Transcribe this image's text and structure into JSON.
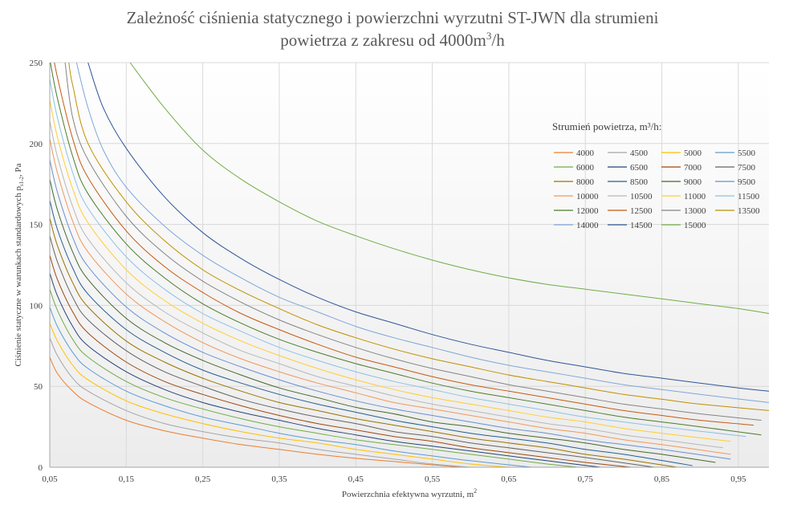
{
  "chart_data": {
    "type": "line",
    "title_line1": "Zależność ciśnienia statycznego i powierzchni wyrzutni ST-JWN dla strumieni",
    "title_line2_main": "powietrza z zakresu od 4000m",
    "title_line2_sup": "3",
    "title_line2_tail": "/h",
    "xlabel_main": "Powierzchnia efektywna wyrzutni, m",
    "xlabel_sup": "2",
    "ylabel_main": "Ciśnienie statyczne w warunkach standardowych p",
    "ylabel_sub": "s1-2",
    "ylabel_tail": ", Pa",
    "xlim": [
      0.05,
      0.99
    ],
    "ylim": [
      0,
      250
    ],
    "x_ticks": [
      "0,05",
      "0,15",
      "0,25",
      "0,35",
      "0,45",
      "0,55",
      "0,65",
      "0,75",
      "0,85",
      "0,95"
    ],
    "y_ticks": [
      "0",
      "50",
      "100",
      "150",
      "200",
      "250"
    ],
    "grid": true,
    "legend_title": "Strumień powietrza, m³/h:",
    "legend_position": "right",
    "model_note": "",
    "series": [
      {
        "name": "4000",
        "color": "#ed7d31",
        "x_end": 0.59,
        "x": [
          0.05,
          0.06,
          0.08,
          0.1,
          0.15,
          0.2,
          0.25,
          0.3,
          0.35,
          0.4,
          0.45,
          0.5,
          0.55,
          0.59
        ],
        "y": [
          68,
          58,
          47,
          40,
          29,
          22.5,
          18,
          14,
          11,
          8,
          5.5,
          3.5,
          1.5,
          0
        ]
      },
      {
        "name": "4500",
        "color": "#a5a5a5",
        "x_end": 0.6,
        "x": [
          0.05,
          0.06,
          0.08,
          0.1,
          0.15,
          0.2,
          0.25,
          0.3,
          0.35,
          0.4,
          0.45,
          0.5,
          0.55,
          0.6
        ],
        "y": [
          80,
          69,
          55,
          47,
          35,
          27,
          22,
          18,
          15,
          11,
          8,
          5,
          2,
          0
        ]
      },
      {
        "name": "5000",
        "color": "#ffc000",
        "x_end": 0.65,
        "x": [
          0.05,
          0.06,
          0.08,
          0.1,
          0.15,
          0.2,
          0.25,
          0.3,
          0.35,
          0.4,
          0.45,
          0.5,
          0.55,
          0.6,
          0.65
        ],
        "y": [
          89,
          78,
          63,
          54,
          41,
          33,
          27,
          22,
          18,
          15,
          11,
          8,
          5,
          2,
          0
        ]
      },
      {
        "name": "5500",
        "color": "#5b9bd5",
        "x_end": 0.68,
        "x": [
          0.05,
          0.06,
          0.08,
          0.1,
          0.15,
          0.2,
          0.25,
          0.3,
          0.35,
          0.4,
          0.45,
          0.5,
          0.55,
          0.6,
          0.68
        ],
        "y": [
          99,
          87,
          71,
          61,
          47,
          38,
          31,
          26,
          21,
          17,
          14,
          10,
          7,
          4,
          0
        ]
      },
      {
        "name": "6000",
        "color": "#70ad47",
        "x_end": 0.74,
        "x": [
          0.05,
          0.06,
          0.08,
          0.1,
          0.15,
          0.2,
          0.25,
          0.3,
          0.35,
          0.4,
          0.45,
          0.5,
          0.55,
          0.6,
          0.65,
          0.7,
          0.74
        ],
        "y": [
          110,
          97,
          79,
          68,
          53,
          43,
          36,
          30,
          25,
          21,
          17,
          14,
          11,
          8,
          5,
          2,
          0
        ]
      },
      {
        "name": "6500",
        "color": "#264478",
        "x_end": 0.77,
        "x": [
          0.05,
          0.06,
          0.08,
          0.1,
          0.15,
          0.2,
          0.25,
          0.3,
          0.35,
          0.4,
          0.45,
          0.5,
          0.55,
          0.6,
          0.65,
          0.7,
          0.77
        ],
        "y": [
          120,
          106,
          87,
          75,
          59,
          48,
          40,
          34,
          29,
          24,
          20,
          16,
          13,
          10,
          7,
          4,
          0
        ]
      },
      {
        "name": "7000",
        "color": "#9e480e",
        "x_end": 0.81,
        "x": [
          0.05,
          0.06,
          0.08,
          0.1,
          0.15,
          0.2,
          0.25,
          0.3,
          0.35,
          0.4,
          0.45,
          0.5,
          0.55,
          0.6,
          0.65,
          0.7,
          0.75,
          0.81
        ],
        "y": [
          131,
          116,
          96,
          83,
          65,
          53,
          45,
          38,
          32,
          27,
          23,
          19,
          16,
          12,
          9,
          6,
          3,
          0
        ]
      },
      {
        "name": "7500",
        "color": "#636363",
        "x_end": 0.84,
        "x": [
          0.05,
          0.06,
          0.08,
          0.1,
          0.15,
          0.2,
          0.25,
          0.3,
          0.35,
          0.4,
          0.45,
          0.5,
          0.55,
          0.6,
          0.65,
          0.7,
          0.75,
          0.84
        ],
        "y": [
          143,
          127,
          105,
          91,
          72,
          59,
          50,
          42,
          36,
          31,
          27,
          22,
          19,
          15,
          12,
          9,
          6,
          0
        ]
      },
      {
        "name": "8000",
        "color": "#997300",
        "x_end": 0.87,
        "x": [
          0.05,
          0.06,
          0.08,
          0.1,
          0.15,
          0.2,
          0.25,
          0.3,
          0.35,
          0.4,
          0.45,
          0.5,
          0.55,
          0.6,
          0.65,
          0.7,
          0.75,
          0.8,
          0.87
        ],
        "y": [
          154,
          137,
          114,
          99,
          78,
          65,
          55,
          47,
          40,
          35,
          30,
          26,
          22,
          18,
          15,
          12,
          8,
          5,
          0
        ]
      },
      {
        "name": "8500",
        "color": "#255e91",
        "x_end": 0.89,
        "x": [
          0.05,
          0.06,
          0.08,
          0.1,
          0.15,
          0.2,
          0.25,
          0.3,
          0.35,
          0.4,
          0.45,
          0.5,
          0.55,
          0.6,
          0.65,
          0.7,
          0.75,
          0.8,
          0.89
        ],
        "y": [
          165,
          147,
          123,
          107,
          85,
          71,
          60,
          52,
          45,
          39,
          34,
          29,
          25,
          21,
          18,
          15,
          11,
          8,
          1
        ]
      },
      {
        "name": "9000",
        "color": "#43682b",
        "x_end": 0.92,
        "x": [
          0.05,
          0.06,
          0.08,
          0.1,
          0.15,
          0.2,
          0.25,
          0.3,
          0.35,
          0.4,
          0.45,
          0.5,
          0.55,
          0.6,
          0.65,
          0.7,
          0.75,
          0.8,
          0.85,
          0.92
        ],
        "y": [
          178,
          159,
          133,
          116,
          92,
          77,
          66,
          57,
          49,
          43,
          37,
          33,
          28,
          25,
          21,
          18,
          15,
          11,
          8,
          3
        ]
      },
      {
        "name": "9500",
        "color": "#698ed0",
        "x_end": 0.94,
        "x": [
          0.05,
          0.06,
          0.08,
          0.1,
          0.15,
          0.2,
          0.25,
          0.3,
          0.35,
          0.4,
          0.45,
          0.5,
          0.55,
          0.6,
          0.65,
          0.7,
          0.75,
          0.8,
          0.85,
          0.94
        ],
        "y": [
          190,
          170,
          142,
          124,
          99,
          83,
          71,
          62,
          54,
          47,
          41,
          36,
          32,
          28,
          24,
          21,
          17,
          14,
          11,
          5
        ]
      },
      {
        "name": "10000",
        "color": "#f1975a",
        "x_end": 0.94,
        "x": [
          0.05,
          0.06,
          0.08,
          0.1,
          0.15,
          0.2,
          0.25,
          0.3,
          0.35,
          0.4,
          0.45,
          0.5,
          0.55,
          0.6,
          0.65,
          0.7,
          0.75,
          0.8,
          0.85,
          0.94
        ],
        "y": [
          203,
          182,
          152,
          133,
          107,
          90,
          77,
          67,
          59,
          52,
          46,
          40,
          36,
          32,
          28,
          24,
          21,
          17,
          14,
          8
        ]
      },
      {
        "name": "10500",
        "color": "#b7b7b7",
        "x_end": 0.93,
        "x": [
          0.05,
          0.06,
          0.08,
          0.1,
          0.15,
          0.2,
          0.25,
          0.3,
          0.35,
          0.4,
          0.45,
          0.5,
          0.55,
          0.6,
          0.65,
          0.7,
          0.75,
          0.8,
          0.85,
          0.93
        ],
        "y": [
          214,
          192,
          161,
          141,
          114,
          96,
          83,
          72,
          64,
          56,
          50,
          44,
          39,
          35,
          31,
          27,
          24,
          20,
          17,
          12
        ]
      },
      {
        "name": "11000",
        "color": "#ffcd33",
        "x_end": 0.94,
        "x": [
          0.05,
          0.06,
          0.08,
          0.1,
          0.15,
          0.2,
          0.25,
          0.3,
          0.35,
          0.4,
          0.45,
          0.5,
          0.55,
          0.6,
          0.65,
          0.7,
          0.75,
          0.8,
          0.85,
          0.94
        ],
        "y": [
          227,
          204,
          172,
          151,
          122,
          103,
          89,
          78,
          69,
          61,
          54,
          48,
          43,
          39,
          35,
          31,
          28,
          24,
          21,
          16
        ]
      },
      {
        "name": "11500",
        "color": "#8cc1e6",
        "x_end": 0.96,
        "x": [
          0.05,
          0.06,
          0.08,
          0.1,
          0.15,
          0.2,
          0.25,
          0.3,
          0.35,
          0.4,
          0.45,
          0.5,
          0.55,
          0.6,
          0.65,
          0.7,
          0.75,
          0.8,
          0.85,
          0.96
        ],
        "y": [
          240,
          216,
          182,
          160,
          130,
          110,
          95,
          84,
          74,
          66,
          59,
          53,
          48,
          43,
          39,
          35,
          31,
          28,
          25,
          19
        ]
      },
      {
        "name": "12000",
        "color": "#4a7d2c",
        "x_end": 0.98,
        "x": [
          0.05,
          0.06,
          0.08,
          0.1,
          0.15,
          0.2,
          0.25,
          0.3,
          0.35,
          0.4,
          0.45,
          0.5,
          0.55,
          0.6,
          0.65,
          0.7,
          0.75,
          0.8,
          0.85,
          0.9,
          0.98
        ],
        "y": [
          252,
          228,
          192,
          169,
          138,
          117,
          101,
          89,
          79,
          71,
          64,
          58,
          52,
          47,
          43,
          39,
          35,
          31,
          28,
          25,
          20
        ]
      },
      {
        "name": "12500",
        "color": "#c55a11",
        "x_end": 0.97,
        "x": [
          0.05,
          0.06,
          0.08,
          0.1,
          0.15,
          0.2,
          0.25,
          0.3,
          0.35,
          0.4,
          0.45,
          0.5,
          0.55,
          0.6,
          0.65,
          0.7,
          0.75,
          0.8,
          0.85,
          0.9,
          0.97
        ],
        "y": [
          266,
          241,
          203,
          179,
          146,
          124,
          108,
          95,
          85,
          76,
          68,
          62,
          56,
          51,
          47,
          43,
          39,
          35,
          32,
          29,
          26
        ]
      },
      {
        "name": "13000",
        "color": "#848484",
        "x_end": 0.98,
        "x": [
          0.07,
          0.08,
          0.1,
          0.15,
          0.2,
          0.25,
          0.3,
          0.35,
          0.4,
          0.45,
          0.5,
          0.55,
          0.6,
          0.65,
          0.7,
          0.75,
          0.8,
          0.85,
          0.9,
          0.98
        ],
        "y": [
          250,
          216,
          190,
          155,
          132,
          115,
          102,
          91,
          82,
          74,
          67,
          61,
          56,
          51,
          47,
          43,
          39,
          36,
          33,
          29
        ]
      },
      {
        "name": "13500",
        "color": "#bf8f00",
        "x_end": 0.99,
        "x": [
          0.075,
          0.08,
          0.1,
          0.15,
          0.2,
          0.25,
          0.3,
          0.35,
          0.4,
          0.45,
          0.5,
          0.55,
          0.6,
          0.65,
          0.7,
          0.75,
          0.8,
          0.85,
          0.9,
          0.99
        ],
        "y": [
          250,
          236,
          200,
          164,
          140,
          122,
          109,
          98,
          88,
          80,
          73,
          67,
          62,
          57,
          53,
          49,
          45,
          42,
          39,
          35
        ]
      },
      {
        "name": "14000",
        "color": "#7ea6d9",
        "x_end": 0.99,
        "x": [
          0.085,
          0.1,
          0.12,
          0.15,
          0.2,
          0.25,
          0.3,
          0.35,
          0.4,
          0.45,
          0.5,
          0.55,
          0.6,
          0.65,
          0.7,
          0.75,
          0.8,
          0.85,
          0.9,
          0.99
        ],
        "y": [
          250,
          222,
          196,
          173,
          149,
          131,
          117,
          105,
          96,
          87,
          80,
          74,
          68,
          63,
          59,
          55,
          51,
          48,
          45,
          40
        ]
      },
      {
        "name": "14500",
        "color": "#2f5597",
        "x_end": 0.99,
        "x": [
          0.1,
          0.12,
          0.15,
          0.2,
          0.25,
          0.3,
          0.35,
          0.4,
          0.45,
          0.5,
          0.55,
          0.6,
          0.65,
          0.7,
          0.75,
          0.8,
          0.85,
          0.9,
          0.95,
          0.99
        ],
        "y": [
          250,
          222,
          197,
          167,
          145,
          129,
          116,
          105,
          96,
          89,
          82,
          76,
          71,
          66,
          62,
          58,
          55,
          52,
          49,
          47
        ]
      },
      {
        "name": "15000",
        "color": "#70ad47",
        "x_end": 0.99,
        "x": [
          0.155,
          0.2,
          0.25,
          0.3,
          0.35,
          0.4,
          0.45,
          0.5,
          0.55,
          0.6,
          0.65,
          0.7,
          0.75,
          0.8,
          0.85,
          0.9,
          0.95,
          0.99
        ],
        "y": [
          250,
          222,
          196,
          178,
          164,
          152,
          143,
          135,
          128,
          122,
          117,
          113,
          110,
          107,
          104,
          101,
          98,
          95
        ]
      }
    ]
  }
}
